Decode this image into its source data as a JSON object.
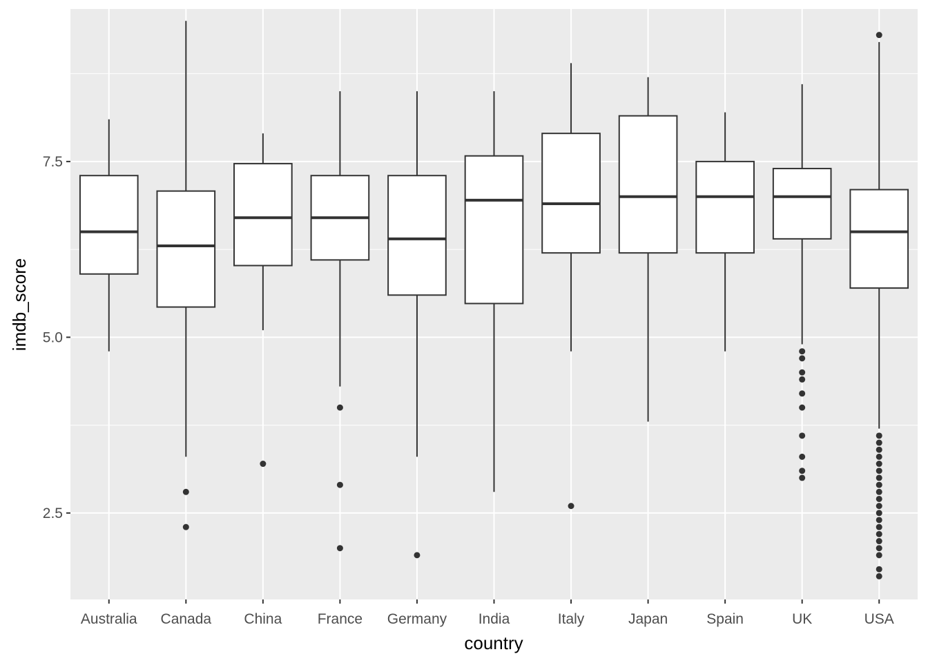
{
  "chart_data": {
    "type": "boxplot",
    "xlabel": "country",
    "ylabel": "imdb_score",
    "ylim": [
      1.27,
      9.67
    ],
    "y_ticks": [
      2.5,
      5.0,
      7.5
    ],
    "y_tick_labels": [
      "2.5",
      "5.0",
      "7.5"
    ],
    "y_minor_ticks": [
      3.75,
      6.25,
      8.75
    ],
    "grid": true,
    "legend": "none",
    "categories": [
      "Australia",
      "Canada",
      "China",
      "France",
      "Germany",
      "India",
      "Italy",
      "Japan",
      "Spain",
      "UK",
      "USA"
    ],
    "boxes": [
      {
        "category": "Australia",
        "whisker_low": 4.8,
        "q1": 5.9,
        "median": 6.5,
        "q3": 7.3,
        "whisker_high": 8.1,
        "outliers": []
      },
      {
        "category": "Canada",
        "whisker_low": 3.3,
        "q1": 5.43,
        "median": 6.3,
        "q3": 7.08,
        "whisker_high": 9.5,
        "outliers": [
          2.8,
          2.3
        ]
      },
      {
        "category": "China",
        "whisker_low": 5.1,
        "q1": 6.02,
        "median": 6.7,
        "q3": 7.47,
        "whisker_high": 7.9,
        "outliers": [
          3.2
        ]
      },
      {
        "category": "France",
        "whisker_low": 4.3,
        "q1": 6.1,
        "median": 6.7,
        "q3": 7.3,
        "whisker_high": 8.5,
        "outliers": [
          4.0,
          2.9,
          2.0
        ]
      },
      {
        "category": "Germany",
        "whisker_low": 3.3,
        "q1": 5.6,
        "median": 6.4,
        "q3": 7.3,
        "whisker_high": 8.5,
        "outliers": [
          1.9
        ]
      },
      {
        "category": "India",
        "whisker_low": 2.8,
        "q1": 5.48,
        "median": 6.95,
        "q3": 7.58,
        "whisker_high": 8.5,
        "outliers": []
      },
      {
        "category": "Italy",
        "whisker_low": 4.8,
        "q1": 6.2,
        "median": 6.9,
        "q3": 7.9,
        "whisker_high": 8.9,
        "outliers": [
          2.6
        ]
      },
      {
        "category": "Japan",
        "whisker_low": 3.8,
        "q1": 6.2,
        "median": 7.0,
        "q3": 8.15,
        "whisker_high": 8.7,
        "outliers": []
      },
      {
        "category": "Spain",
        "whisker_low": 4.8,
        "q1": 6.2,
        "median": 7.0,
        "q3": 7.5,
        "whisker_high": 8.2,
        "outliers": []
      },
      {
        "category": "UK",
        "whisker_low": 4.9,
        "q1": 6.4,
        "median": 7.0,
        "q3": 7.4,
        "whisker_high": 8.6,
        "outliers": [
          4.8,
          4.7,
          4.5,
          4.4,
          4.2,
          4.0,
          3.6,
          3.3,
          3.1,
          3.0
        ]
      },
      {
        "category": "USA",
        "whisker_low": 3.7,
        "q1": 5.7,
        "median": 6.5,
        "q3": 7.1,
        "whisker_high": 9.2,
        "outliers": [
          9.3,
          3.6,
          3.5,
          3.4,
          3.3,
          3.2,
          3.1,
          3.0,
          2.9,
          2.8,
          2.7,
          2.6,
          2.5,
          2.4,
          2.3,
          2.2,
          2.1,
          2.0,
          1.9,
          1.7,
          1.6
        ]
      }
    ],
    "colors": {
      "panel": "#ebebeb",
      "grid_major": "#ffffff",
      "box_fill": "#ffffff",
      "box_line": "#333333",
      "tick_text": "#4d4d4d",
      "title_text": "#000000"
    }
  }
}
